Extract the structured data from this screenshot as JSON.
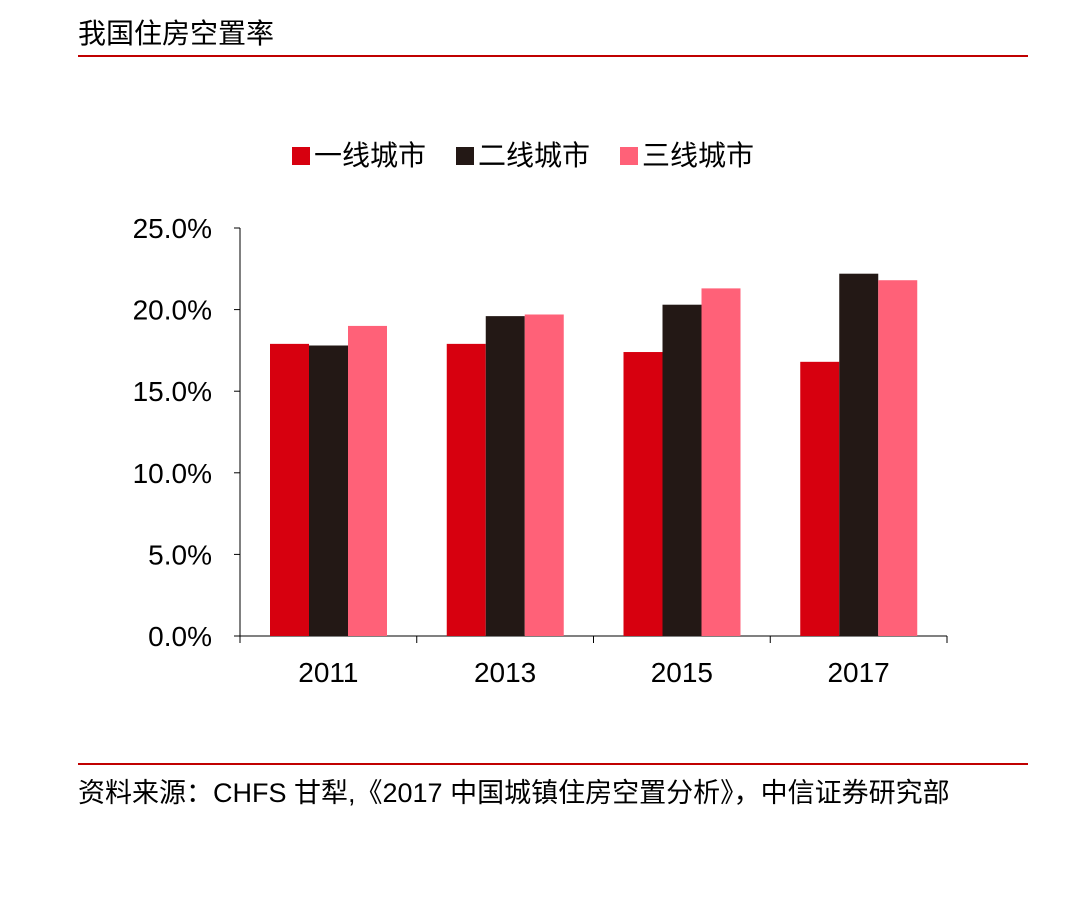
{
  "header": {
    "title": "我国住房空置率"
  },
  "colors": {
    "rule": "#c00000"
  },
  "chart_data": {
    "type": "bar",
    "categories": [
      "2011",
      "2013",
      "2015",
      "2017"
    ],
    "series": [
      {
        "name": "一线城市",
        "color": "#d7000f",
        "values": [
          17.9,
          17.9,
          17.4,
          16.8
        ]
      },
      {
        "name": "二线城市",
        "color": "#231815",
        "values": [
          17.8,
          19.6,
          20.3,
          22.2
        ]
      },
      {
        "name": "三线城市",
        "color": "#ff6178",
        "values": [
          19.0,
          19.7,
          21.3,
          21.8
        ]
      }
    ],
    "ylim": [
      0,
      25
    ],
    "yticks": [
      "0.0%",
      "5.0%",
      "10.0%",
      "15.0%",
      "20.0%",
      "25.0%"
    ],
    "legend_position": "top-center",
    "grid": false
  },
  "source": {
    "text": "资料来源：CHFS 甘犁,《2017 中国城镇住房空置分析》，中信证券研究部"
  }
}
